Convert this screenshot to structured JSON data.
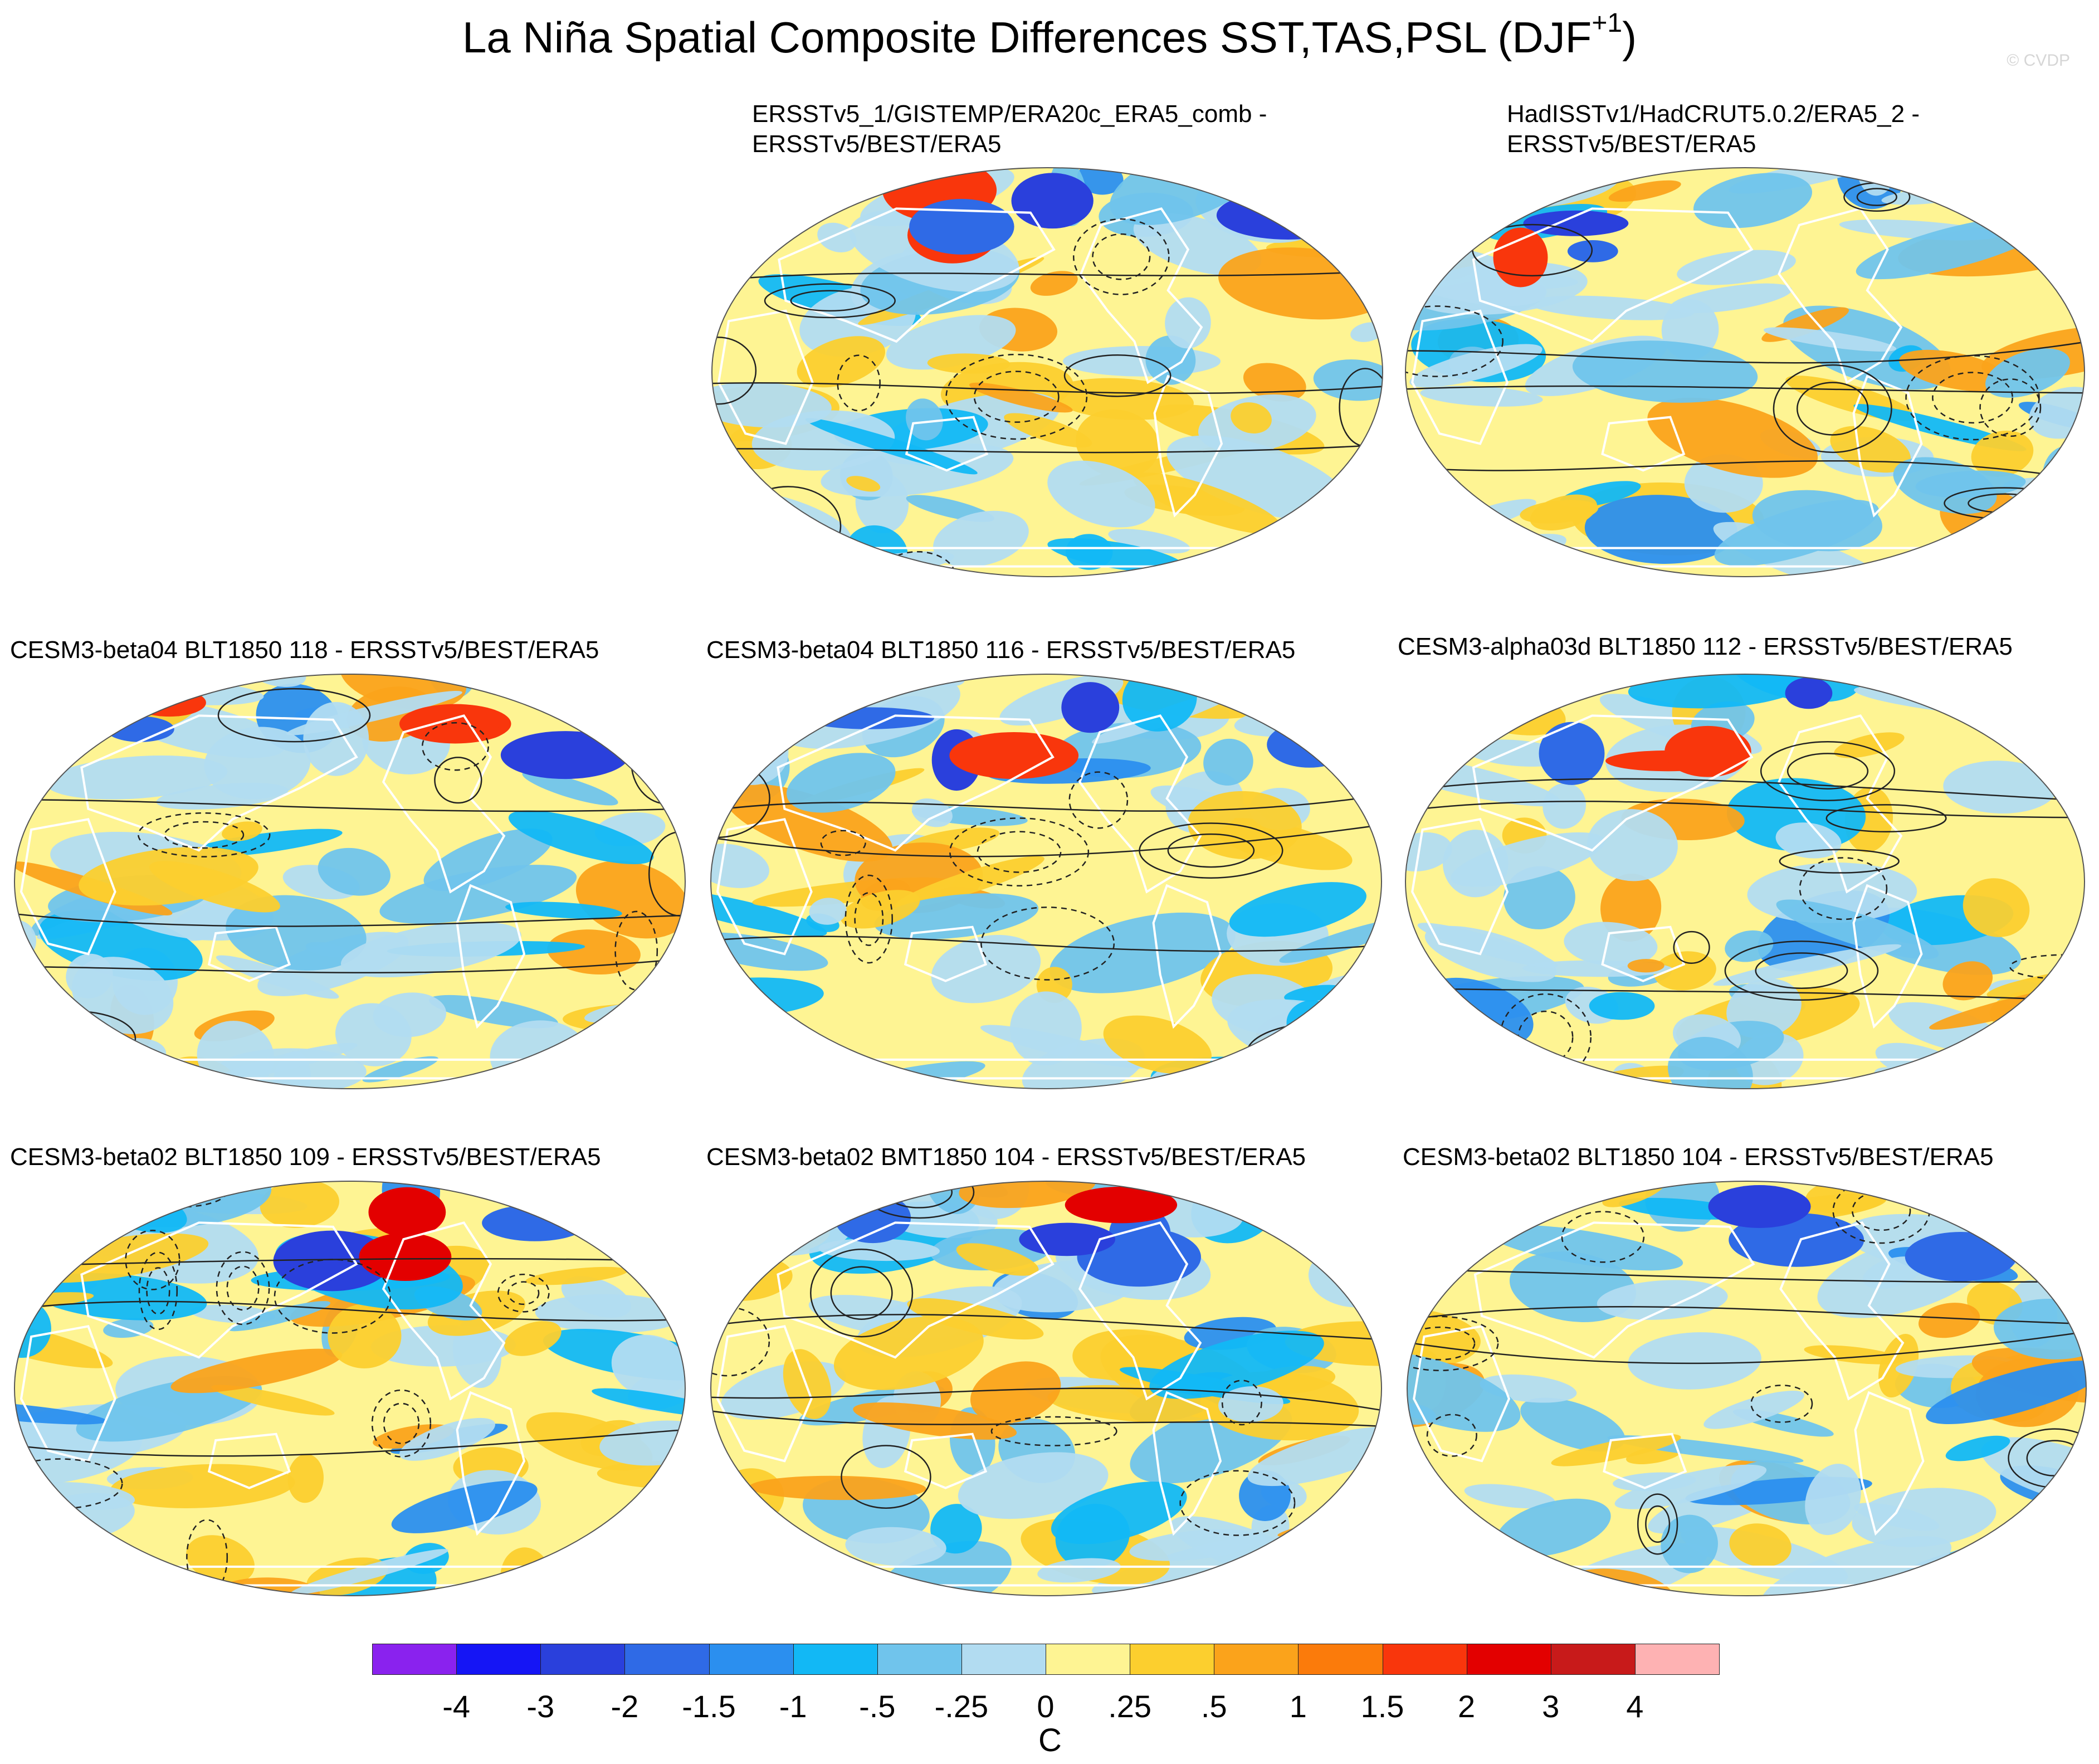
{
  "figure": {
    "title": "La Niña Spatial Composite Differences SST,TAS,PSL (DJF",
    "title_superscript": "+1",
    "title_close": ")",
    "watermark": "© CVDP"
  },
  "panels": [
    {
      "id": "p1",
      "line1": "ERSSTv5_1/GISTEMP/ERA20c_ERA5_comb -",
      "line2": "ERSSTv5/BEST/ERA5"
    },
    {
      "id": "p2",
      "line1": "HadISSTv1/HadCRUT5.0.2/ERA5_2 -",
      "line2": "ERSSTv5/BEST/ERA5"
    },
    {
      "id": "p3",
      "line1": "CESM3-beta04 BLT1850 118 - ERSSTv5/BEST/ERA5",
      "line2": ""
    },
    {
      "id": "p4",
      "line1": "CESM3-beta04 BLT1850 116 - ERSSTv5/BEST/ERA5",
      "line2": ""
    },
    {
      "id": "p5",
      "line1": "CESM3-alpha03d BLT1850 112 - ERSSTv5/BEST/ERA5",
      "line2": ""
    },
    {
      "id": "p6",
      "line1": "CESM3-beta02 BLT1850 109 - ERSSTv5/BEST/ERA5",
      "line2": ""
    },
    {
      "id": "p7",
      "line1": "CESM3-beta02 BMT1850 104 - ERSSTv5/BEST/ERA5",
      "line2": ""
    },
    {
      "id": "p8",
      "line1": "CESM3-beta02 BLT1850 104 - ERSSTv5/BEST/ERA5",
      "line2": ""
    }
  ],
  "colorbar": {
    "unit": "C",
    "tick_labels": [
      "-4",
      "-3",
      "-2",
      "-1.5",
      "-1",
      "-.5",
      "-.25",
      "0",
      ".25",
      ".5",
      "1",
      "1.5",
      "2",
      "3",
      "4"
    ],
    "colors": [
      "#8a22ee",
      "#1515f5",
      "#2a40dc",
      "#2f6ae6",
      "#2b8fef",
      "#12b8f5",
      "#70c4ec",
      "#b2dcf1",
      "#fef493",
      "#fccf2e",
      "#fba31b",
      "#fb7b0b",
      "#f9360c",
      "#e30000",
      "#c81a1a",
      "#feb2b3"
    ]
  }
}
